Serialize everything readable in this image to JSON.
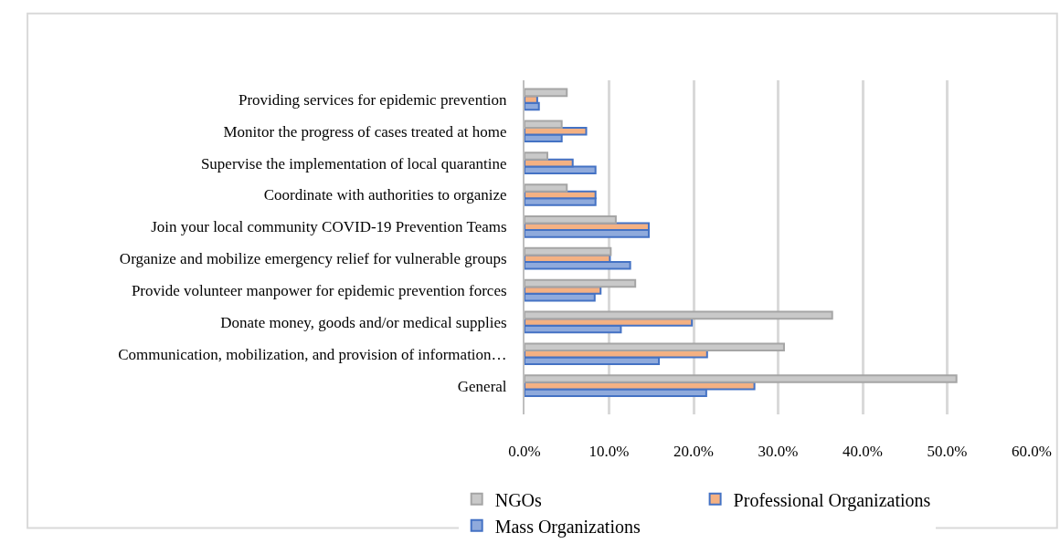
{
  "chart_data": {
    "type": "bar",
    "orientation": "horizontal",
    "categories": [
      "Providing services for epidemic prevention",
      "Monitor the progress of cases treated at home",
      "Supervise the implementation of local quarantine",
      "Coordinate with authorities to organize",
      "Join your local community COVID-19 Prevention Teams",
      "Organize and mobilize emergency relief for vulnerable groups",
      "Provide volunteer manpower for epidemic prevention forces",
      "Donate money, goods and/or medical supplies",
      "Communication, mobilization, and provision of information…",
      "General"
    ],
    "series": [
      {
        "name": "NGOs",
        "color": "#c9c9c9",
        "values": [
          5.0,
          4.4,
          2.7,
          5.0,
          10.8,
          10.2,
          13.1,
          36.4,
          30.7,
          51.1
        ]
      },
      {
        "name": "Professional Organizations",
        "color": "#f4b183",
        "values": [
          1.5,
          7.3,
          5.7,
          8.4,
          14.7,
          10.1,
          9.0,
          19.8,
          21.6,
          27.2
        ]
      },
      {
        "name": "Mass Organizations",
        "color": "#8faadc",
        "values": [
          1.7,
          4.4,
          8.4,
          8.4,
          14.7,
          12.5,
          8.3,
          11.4,
          15.9,
          21.5
        ]
      }
    ],
    "xlim": [
      0,
      60
    ],
    "xticks": [
      {
        "value": 0,
        "label": "0.0%"
      },
      {
        "value": 10,
        "label": "10.0%"
      },
      {
        "value": 20,
        "label": "20.0%"
      },
      {
        "value": 30,
        "label": "30.0%"
      },
      {
        "value": 40,
        "label": "40.0%"
      },
      {
        "value": 50,
        "label": "50.0%"
      },
      {
        "value": 60,
        "label": "60.0%"
      }
    ],
    "grid": "x",
    "legend": "bottom"
  }
}
